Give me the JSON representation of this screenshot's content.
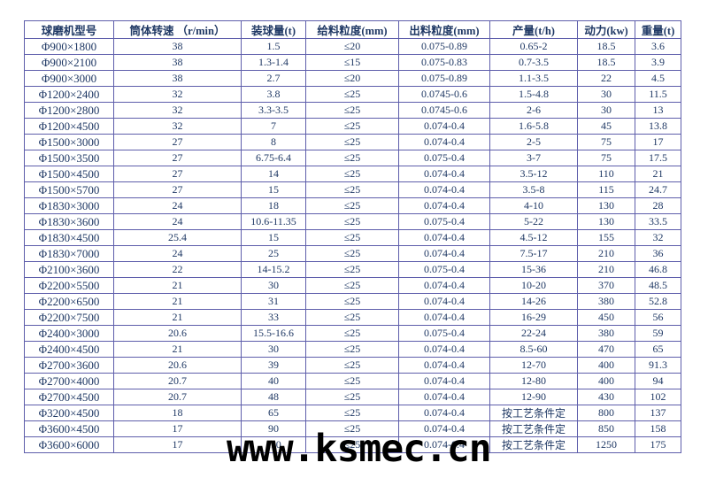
{
  "page": {
    "background": "#ffffff"
  },
  "colors": {
    "border": "#5e5eab",
    "text": "#1f3864",
    "watermark": "#000000"
  },
  "watermark": {
    "text": "www.ksmec.cn"
  },
  "table": {
    "columns": [
      "球磨机型号",
      "筒体转速 （r/min）",
      "装球量(t)",
      "给料粒度(mm)",
      "出料粒度(mm)",
      "产量(t/h)",
      "动力(kw)",
      "重量(t)"
    ],
    "rows": [
      [
        "Φ900×1800",
        "38",
        "1.5",
        "≤20",
        "0.075-0.89",
        "0.65-2",
        "18.5",
        "3.6"
      ],
      [
        "Φ900×2100",
        "38",
        "1.3-1.4",
        "≤15",
        "0.075-0.83",
        "0.7-3.5",
        "18.5",
        "3.9"
      ],
      [
        "Φ900×3000",
        "38",
        "2.7",
        "≤20",
        "0.075-0.89",
        "1.1-3.5",
        "22",
        "4.5"
      ],
      [
        "Φ1200×2400",
        "32",
        "3.8",
        "≤25",
        "0.0745-0.6",
        "1.5-4.8",
        "30",
        "11.5"
      ],
      [
        "Φ1200×2800",
        "32",
        "3.3-3.5",
        "≤25",
        "0.0745-0.6",
        "2-6",
        "30",
        "13"
      ],
      [
        "Φ1200×4500",
        "32",
        "7",
        "≤25",
        "0.074-0.4",
        "1.6-5.8",
        "45",
        "13.8"
      ],
      [
        "Φ1500×3000",
        "27",
        "8",
        "≤25",
        "0.074-0.4",
        "2-5",
        "75",
        "17"
      ],
      [
        "Φ1500×3500",
        "27",
        "6.75-6.4",
        "≤25",
        "0.075-0.4",
        "3-7",
        "75",
        "17.5"
      ],
      [
        "Φ1500×4500",
        "27",
        "14",
        "≤25",
        "0.074-0.4",
        "3.5-12",
        "110",
        "21"
      ],
      [
        "Φ1500×5700",
        "27",
        "15",
        "≤25",
        "0.074-0.4",
        "3.5-8",
        "115",
        "24.7"
      ],
      [
        "Φ1830×3000",
        "24",
        "18",
        "≤25",
        "0.074-0.4",
        "4-10",
        "130",
        "28"
      ],
      [
        "Φ1830×3600",
        "24",
        "10.6-11.35",
        "≤25",
        "0.075-0.4",
        "5-22",
        "130",
        "33.5"
      ],
      [
        "Φ1830×4500",
        "25.4",
        "15",
        "≤25",
        "0.074-0.4",
        "4.5-12",
        "155",
        "32"
      ],
      [
        "Φ1830×7000",
        "24",
        "25",
        "≤25",
        "0.074-0.4",
        "7.5-17",
        "210",
        "36"
      ],
      [
        "Φ2100×3600",
        "22",
        "14-15.2",
        "≤25",
        "0.075-0.4",
        "15-36",
        "210",
        "46.8"
      ],
      [
        "Φ2200×5500",
        "21",
        "30",
        "≤25",
        "0.074-0.4",
        "10-20",
        "370",
        "48.5"
      ],
      [
        "Φ2200×6500",
        "21",
        "31",
        "≤25",
        "0.074-0.4",
        "14-26",
        "380",
        "52.8"
      ],
      [
        "Φ2200×7500",
        "21",
        "33",
        "≤25",
        "0.074-0.4",
        "16-29",
        "450",
        "56"
      ],
      [
        "Φ2400×3000",
        "20.6",
        "15.5-16.6",
        "≤25",
        "0.075-0.4",
        "22-24",
        "380",
        "59"
      ],
      [
        "Φ2400×4500",
        "21",
        "30",
        "≤25",
        "0.074-0.4",
        "8.5-60",
        "470",
        "65"
      ],
      [
        "Φ2700×3600",
        "20.6",
        "39",
        "≤25",
        "0.074-0.4",
        "12-70",
        "400",
        "91.3"
      ],
      [
        "Φ2700×4000",
        "20.7",
        "40",
        "≤25",
        "0.074-0.4",
        "12-80",
        "400",
        "94"
      ],
      [
        "Φ2700×4500",
        "20.7",
        "48",
        "≤25",
        "0.074-0.4",
        "12-90",
        "430",
        "102"
      ],
      [
        "Φ3200×4500",
        "18",
        "65",
        "≤25",
        "0.074-0.4",
        "按工艺条件定",
        "800",
        "137"
      ],
      [
        "Φ3600×4500",
        "17",
        "90",
        "≤25",
        "0.074-0.4",
        "按工艺条件定",
        "850",
        "158"
      ],
      [
        "Φ3600×6000",
        "17",
        "110",
        "≤25",
        "0.074-0.4",
        "按工艺条件定",
        "1250",
        "175"
      ]
    ]
  }
}
